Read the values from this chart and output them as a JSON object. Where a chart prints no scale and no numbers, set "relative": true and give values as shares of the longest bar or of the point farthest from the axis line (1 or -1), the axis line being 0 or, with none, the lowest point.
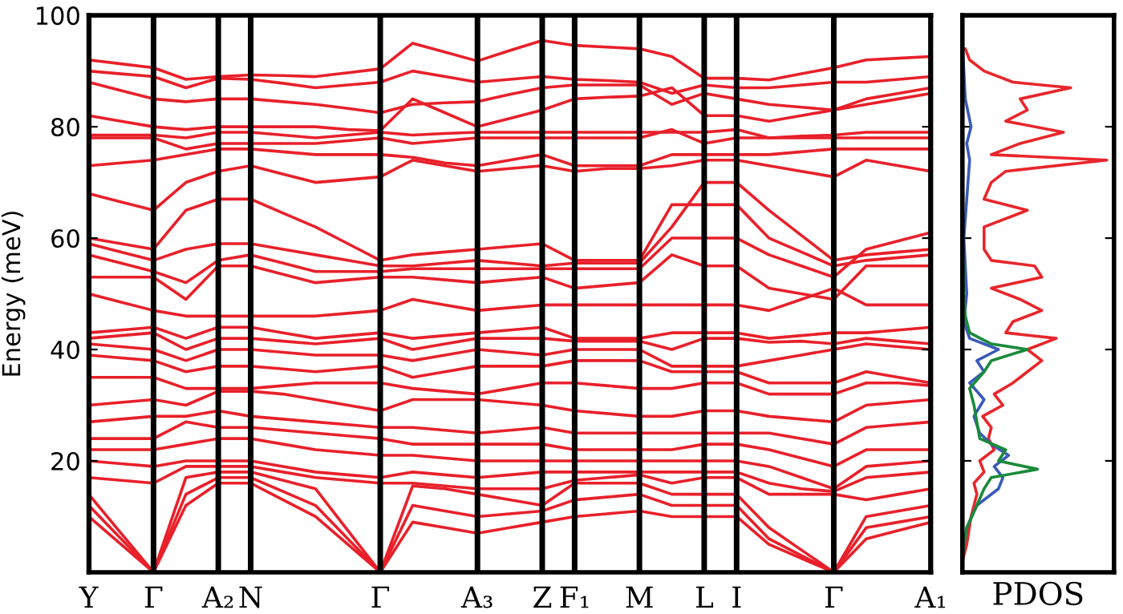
{
  "chart_data": [
    {
      "type": "line",
      "ylabel": "Energy (meV)",
      "categories": [
        "Y",
        null,
        "Γ",
        null,
        "A₂",
        "N",
        null,
        null,
        null,
        "Γ",
        null,
        null,
        "A₃",
        null,
        "Z",
        "F₁",
        null,
        "M",
        null,
        "L",
        "I",
        null,
        null,
        "Γ",
        null,
        null,
        "A₁"
      ],
      "ylim": [
        0,
        100
      ],
      "yticks": [
        20,
        40,
        60,
        80,
        100
      ],
      "grid": "x",
      "marker": "none",
      "line_style": "solid",
      "series": [
        {
          "color": "#e8202a",
          "values": [
            92,
            91.3,
            90.6,
            88.5,
            89,
            89.3,
            89.2,
            89,
            89.7,
            90.4,
            95,
            93.4,
            91.8,
            93.7,
            95.5,
            94.6,
            94.3,
            94,
            92.6,
            88.7,
            88.7,
            88.4,
            89.5,
            90.6,
            92,
            92.3,
            92.6
          ]
        },
        {
          "color": "#e8202a",
          "values": [
            90,
            89.5,
            89,
            87,
            88.7,
            88.5,
            87.8,
            87,
            87.5,
            88,
            90,
            89,
            88,
            88.5,
            89,
            88.5,
            88.3,
            88,
            86,
            87.5,
            87,
            87,
            87.5,
            88,
            88,
            88.5,
            89
          ]
        },
        {
          "color": "#e8202a",
          "values": [
            88,
            86.5,
            85,
            84.5,
            85,
            85,
            84.5,
            84,
            83.3,
            82.5,
            84,
            84.3,
            84.5,
            85.8,
            87,
            87.5,
            87.5,
            87.5,
            84,
            86,
            85,
            84,
            83.5,
            83,
            85,
            86,
            87
          ]
        },
        {
          "color": "#e8202a",
          "values": [
            82,
            81,
            80,
            79.5,
            80,
            80,
            80,
            80,
            79.5,
            79.3,
            85,
            82.5,
            80,
            81.5,
            83,
            85,
            85.3,
            85.5,
            87,
            82,
            82,
            81,
            82,
            83,
            84,
            85,
            86
          ]
        },
        {
          "color": "#e8202a",
          "values": [
            78.5,
            78.5,
            78.5,
            78,
            79,
            79,
            78.5,
            78,
            78.5,
            79,
            78.5,
            78.8,
            79,
            79,
            79,
            79,
            79,
            79,
            79,
            79,
            79.5,
            78,
            78.3,
            78.5,
            79,
            79,
            79
          ]
        },
        {
          "color": "#e8202a",
          "values": [
            78,
            78,
            78,
            76,
            77,
            77,
            77,
            77,
            77.5,
            78,
            77,
            77.5,
            78,
            78,
            78,
            78,
            78,
            78,
            79.5,
            77,
            78,
            78,
            78,
            78,
            78,
            78,
            78
          ]
        },
        {
          "color": "#e8202a",
          "values": [
            73,
            73.5,
            74,
            75,
            76,
            76,
            75.5,
            75,
            75,
            75,
            74.5,
            73.5,
            73,
            74,
            75,
            73,
            73,
            73,
            75,
            75,
            75,
            75,
            75.5,
            76,
            76,
            76,
            76
          ]
        },
        {
          "color": "#e8202a",
          "values": [
            68,
            66.5,
            65,
            70,
            72,
            73,
            71.5,
            70,
            70.5,
            71,
            74,
            73,
            72,
            72.5,
            73,
            72,
            72.5,
            72.5,
            73,
            74,
            74,
            73,
            72,
            71,
            74,
            73,
            72
          ]
        },
        {
          "color": "#e8202a",
          "values": [
            60,
            59,
            58,
            65,
            67,
            67,
            64.5,
            62,
            59,
            56,
            57,
            57.5,
            58,
            58.5,
            59,
            56,
            56,
            56,
            66,
            66,
            66,
            60,
            57.5,
            55,
            56,
            56.5,
            57
          ]
        },
        {
          "color": "#e8202a",
          "values": [
            59,
            57.5,
            56,
            58,
            59,
            59,
            58,
            57,
            56,
            55,
            55,
            55.5,
            56,
            55.5,
            55,
            55.5,
            55.5,
            55.5,
            62,
            70,
            70,
            65,
            60.5,
            56,
            57,
            57.5,
            58
          ]
        },
        {
          "color": "#e8202a",
          "values": [
            57,
            55.5,
            54,
            52,
            56,
            57,
            55.5,
            54,
            54,
            54,
            54.5,
            54.5,
            54.5,
            54.5,
            54.5,
            54.5,
            54.5,
            54.5,
            60,
            60,
            60,
            57,
            55,
            53,
            58,
            59.5,
            61
          ]
        },
        {
          "color": "#e8202a",
          "values": [
            53,
            53,
            53,
            49,
            55,
            55,
            53.5,
            52,
            52.5,
            53,
            53,
            52.5,
            52,
            52.5,
            53,
            51,
            51.5,
            52,
            57,
            55,
            55,
            51,
            50,
            49,
            55,
            55,
            55
          ]
        },
        {
          "color": "#e8202a",
          "values": [
            50,
            48.5,
            47,
            46,
            46,
            46,
            46,
            46,
            46.5,
            47,
            49,
            48,
            47,
            47.5,
            48,
            48,
            48,
            48,
            48,
            48,
            48,
            47,
            49,
            51,
            48,
            48,
            48
          ]
        },
        {
          "color": "#e8202a",
          "values": [
            43,
            43.5,
            44,
            42,
            44,
            44,
            43,
            42,
            42.5,
            43,
            42,
            42.5,
            43,
            43.5,
            44,
            42,
            42,
            42,
            43,
            43,
            43,
            42,
            42.5,
            43,
            43,
            43.5,
            44
          ]
        },
        {
          "color": "#e8202a",
          "values": [
            42,
            42.5,
            43,
            40,
            42,
            42,
            41.5,
            41,
            41.5,
            42,
            40,
            41,
            42,
            42,
            42,
            41.5,
            41.5,
            41.5,
            40,
            42,
            42,
            41.3,
            41.5,
            41,
            42,
            41.5,
            41
          ]
        },
        {
          "color": "#e8202a",
          "values": [
            41,
            40.5,
            40,
            38,
            40,
            40,
            39.5,
            39,
            39,
            39,
            38,
            39,
            40,
            39.5,
            39,
            40,
            40,
            40,
            37,
            37,
            37,
            38,
            39,
            40,
            41,
            40.5,
            40
          ]
        },
        {
          "color": "#e8202a",
          "values": [
            39,
            38.5,
            38,
            36,
            37,
            37,
            36.5,
            36,
            36.5,
            37,
            35,
            36,
            37,
            37,
            37,
            38,
            38,
            38,
            36,
            36,
            36,
            34,
            34,
            34,
            36,
            35,
            34
          ]
        },
        {
          "color": "#e8202a",
          "values": [
            35,
            35,
            35,
            33,
            33,
            33,
            33.5,
            34,
            34,
            34,
            33,
            32.5,
            32,
            33,
            34,
            34,
            33.5,
            33,
            33,
            34,
            34,
            32,
            32,
            32,
            34,
            34,
            33.5
          ]
        },
        {
          "color": "#e8202a",
          "values": [
            30,
            30.5,
            31,
            30,
            32.5,
            32.5,
            32,
            31,
            30,
            29,
            31,
            31,
            31,
            30.5,
            30,
            29,
            28.5,
            28,
            28,
            29,
            29,
            28,
            27.5,
            27,
            30,
            30.5,
            31
          ]
        },
        {
          "color": "#e8202a",
          "values": [
            27,
            27.5,
            28,
            28,
            29,
            28,
            27.5,
            27,
            26.5,
            26,
            26,
            25.5,
            25,
            25.5,
            26,
            25,
            25,
            25,
            25,
            25,
            25,
            25,
            24,
            23,
            26,
            26.5,
            27
          ]
        },
        {
          "color": "#e8202a",
          "values": [
            24,
            24,
            24,
            27,
            26,
            26,
            25.5,
            25,
            24.5,
            24,
            23,
            23,
            23,
            23,
            23,
            22,
            22,
            22,
            22,
            23,
            23,
            22,
            20.5,
            19,
            22,
            22,
            22
          ]
        },
        {
          "color": "#e8202a",
          "values": [
            22,
            22,
            22,
            23,
            24,
            24,
            23,
            22,
            21.5,
            21,
            21,
            20.5,
            20,
            20,
            20,
            20,
            20,
            20,
            20,
            20,
            20,
            19,
            17,
            15,
            19,
            19.5,
            20
          ]
        },
        {
          "color": "#e8202a",
          "values": [
            20,
            19.5,
            19,
            20,
            20,
            20,
            19,
            18,
            17.5,
            17,
            18,
            17.5,
            17,
            17.5,
            18,
            18,
            18,
            18,
            18,
            18,
            18,
            16,
            15,
            14.5,
            17,
            17.5,
            18
          ]
        },
        {
          "color": "#e8202a",
          "values": [
            17,
            16.5,
            16,
            19,
            19,
            19,
            18,
            17,
            16.5,
            16,
            16,
            15.5,
            15,
            15,
            15,
            16.5,
            17,
            17.5,
            16,
            17,
            17,
            14,
            14,
            14,
            13,
            14,
            15
          ]
        },
        {
          "color": "#e8202a",
          "values": [
            14,
            7,
            0,
            17,
            18,
            18,
            16.5,
            15,
            7.5,
            0,
            15.5,
            15,
            14,
            13,
            12,
            16,
            16,
            16,
            14,
            14,
            14,
            8,
            4,
            0,
            10,
            11,
            12
          ]
        },
        {
          "color": "#e8202a",
          "values": [
            12,
            6,
            0,
            14,
            17,
            17,
            14.5,
            12,
            6,
            0,
            12,
            11,
            10,
            10.5,
            11,
            13,
            13.5,
            14,
            12,
            12,
            12,
            6,
            3,
            0,
            8,
            9,
            10
          ]
        },
        {
          "color": "#e8202a",
          "values": [
            10,
            5,
            0,
            12,
            16,
            16,
            13,
            10,
            5,
            0,
            9,
            8,
            7,
            8,
            9,
            10,
            10.5,
            11,
            10,
            10,
            10,
            5,
            2.5,
            0,
            6,
            7.5,
            9
          ]
        }
      ]
    },
    {
      "type": "line",
      "orientation": "horizontal",
      "relative": true,
      "xlabel": "PDOS",
      "ylim": [
        0,
        100
      ],
      "yticks": [
        20,
        40,
        60,
        80
      ],
      "tick_labels": false,
      "grid": false,
      "marker": "none",
      "line_style": "solid",
      "series": [
        {
          "color": "#e8262b",
          "x": [
            2,
            5,
            10,
            14,
            16,
            18,
            20,
            22,
            24,
            26,
            28,
            30,
            32,
            34,
            36,
            38,
            40,
            42,
            43,
            45,
            47,
            49,
            51,
            53,
            55,
            56,
            58,
            62,
            65,
            67,
            70,
            72,
            74,
            75,
            77,
            79,
            81,
            83,
            85,
            87,
            88,
            90,
            92,
            94
          ],
          "values": [
            0,
            0.03,
            0.06,
            0.1,
            0.08,
            0.15,
            0.12,
            0.22,
            0.18,
            0.2,
            0.14,
            0.28,
            0.22,
            0.35,
            0.45,
            0.55,
            0.45,
            0.65,
            0.3,
            0.35,
            0.55,
            0.4,
            0.2,
            0.55,
            0.5,
            0.2,
            0.15,
            0.15,
            0.45,
            0.15,
            0.2,
            0.3,
            1,
            0.2,
            0.4,
            0.7,
            0.3,
            0.45,
            0.4,
            0.75,
            0.35,
            0.15,
            0.05,
            0.02
          ]
        },
        {
          "color": "#3a5bb8",
          "x": [
            3,
            8,
            12,
            15,
            17,
            19,
            21,
            23,
            25,
            28,
            31,
            34,
            36,
            38,
            40,
            42,
            45,
            50,
            60,
            74,
            77,
            80,
            85,
            95
          ],
          "values": [
            0,
            0.03,
            0.1,
            0.25,
            0.28,
            0.22,
            0.32,
            0.2,
            0.12,
            0.08,
            0.15,
            0.05,
            0.15,
            0.1,
            0.25,
            0.05,
            0.01,
            0.03,
            0.01,
            0.05,
            0.03,
            0.06,
            0.02,
            0
          ]
        },
        {
          "color": "#1a8a3a",
          "x": [
            3,
            8,
            12,
            15,
            17,
            18.5,
            20,
            22,
            24,
            27,
            30,
            33,
            36,
            38,
            40,
            41,
            43,
            46,
            50,
            60,
            80
          ],
          "values": [
            0,
            0.03,
            0.1,
            0.15,
            0.2,
            0.52,
            0.25,
            0.3,
            0.12,
            0.1,
            0.08,
            0.05,
            0.15,
            0.2,
            0.45,
            0.2,
            0.05,
            0.02,
            0.01,
            0,
            0
          ]
        }
      ]
    }
  ]
}
